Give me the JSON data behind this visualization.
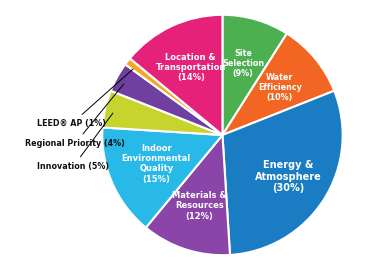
{
  "slices_ordered": [
    {
      "label": "Site\nSelection\n(9%)",
      "label_short": "Site\nSelection",
      "pct": 9,
      "color": "#4caf50"
    },
    {
      "label": "Water\nEfficiency\n(10%)",
      "label_short": "Water\nEfficiency",
      "pct": 10,
      "color": "#f26522"
    },
    {
      "label": "Energy &\nAtmosphere\n(30%)",
      "label_short": "Energy &\nAtmosphere",
      "pct": 30,
      "color": "#1a7dc4"
    },
    {
      "label": "Materials &\nResources\n(12%)",
      "label_short": "Materials &\nResources",
      "pct": 12,
      "color": "#8b44a8"
    },
    {
      "label": "Indoor\nEnvironmental\nQuality\n(15%)",
      "label_short": "Indoor\nEnvironmental\nQuality",
      "pct": 15,
      "color": "#29b9e8"
    },
    {
      "label": "Innovation\n(5%)",
      "label_short": "Innovation",
      "pct": 5,
      "color": "#c8d42e"
    },
    {
      "label": "Regional Priority\n(4%)",
      "label_short": "Regional Priority",
      "pct": 4,
      "color": "#7040a0"
    },
    {
      "label": "LEED AP (1%)",
      "label_short": "LEED AP",
      "pct": 1,
      "color": "#f5a623"
    },
    {
      "label": "Location &\nTransportation\n(14%)",
      "label_short": "Location &\nTransportation",
      "pct": 14,
      "color": "#e5217a"
    }
  ],
  "outside_labels": [
    {
      "text": "LEED® AP (1%)",
      "pct": 1
    },
    {
      "text": "Regional Priority (4%)",
      "pct": 4
    },
    {
      "text": "Innovation (5%)",
      "pct": 5
    }
  ],
  "inside_label_pcts": [
    9,
    10,
    30,
    12,
    15,
    14
  ],
  "inside_label_texts": {
    "9": "Site\nSelection\n(9%)",
    "10": "Water\nEfficiency\n(10%)",
    "30": "Energy &\nAtmosphere\n(30%)",
    "12": "Materials &\nResources\n(12%)",
    "15": "Indoor\nEnvironmental\nQuality\n(15%)",
    "14": "Location &\nTransportation\n(14%)"
  },
  "fig_bg": "#ffffff"
}
